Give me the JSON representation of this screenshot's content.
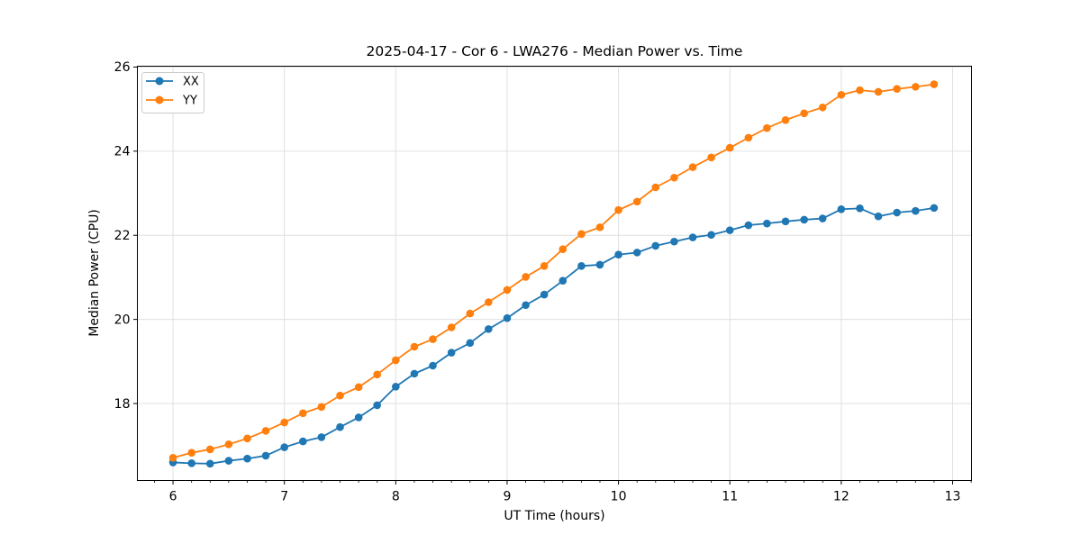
{
  "figure": {
    "background": "#ffffff",
    "text_color": "#000000",
    "grid_color": "#e0e0e0",
    "spine_color": "#000000"
  },
  "chart_data": {
    "type": "line",
    "title": "2025-04-17 - Cor 6 - LWA276 - Median Power vs. Time",
    "xlabel": "UT Time (hours)",
    "ylabel": "Median Power (CPU)",
    "xlim": [
      5.68,
      13.17
    ],
    "ylim": [
      16.17,
      26.02
    ],
    "x_ticks": [
      6,
      7,
      8,
      9,
      10,
      11,
      12,
      13
    ],
    "y_ticks": [
      18,
      20,
      22,
      24,
      26
    ],
    "x_minor_step": 0.1667,
    "grid": true,
    "legend_position": "upper-left",
    "x": [
      6.0,
      6.167,
      6.333,
      6.5,
      6.667,
      6.833,
      7.0,
      7.167,
      7.333,
      7.5,
      7.667,
      7.833,
      8.0,
      8.167,
      8.333,
      8.5,
      8.667,
      8.833,
      9.0,
      9.167,
      9.333,
      9.5,
      9.667,
      9.833,
      10.0,
      10.167,
      10.333,
      10.5,
      10.667,
      10.833,
      11.0,
      11.167,
      11.333,
      11.5,
      11.667,
      11.833,
      12.0,
      12.167,
      12.333,
      12.5,
      12.667,
      12.833
    ],
    "series": [
      {
        "name": "XX",
        "color": "#1f77b4",
        "values": [
          16.6,
          16.58,
          16.57,
          16.64,
          16.69,
          16.76,
          16.96,
          17.1,
          17.2,
          17.44,
          17.67,
          17.96,
          18.4,
          18.71,
          18.9,
          19.21,
          19.44,
          19.77,
          20.03,
          20.34,
          20.59,
          20.92,
          21.27,
          21.3,
          21.54,
          21.59,
          21.75,
          21.85,
          21.95,
          22.01,
          22.12,
          22.24,
          22.28,
          22.33,
          22.37,
          22.4,
          22.62,
          22.64,
          22.45,
          22.54,
          22.58,
          22.65
        ]
      },
      {
        "name": "YY",
        "color": "#ff7f0e",
        "values": [
          16.71,
          16.83,
          16.91,
          17.03,
          17.17,
          17.35,
          17.55,
          17.77,
          17.92,
          18.19,
          18.39,
          18.69,
          19.03,
          19.35,
          19.53,
          19.81,
          20.14,
          20.41,
          20.7,
          21.01,
          21.27,
          21.67,
          22.03,
          22.19,
          22.6,
          22.8,
          23.14,
          23.37,
          23.62,
          23.85,
          24.08,
          24.32,
          24.55,
          24.74,
          24.9,
          25.04,
          25.34,
          25.45,
          25.41,
          25.48,
          25.53,
          25.59
        ]
      }
    ]
  },
  "legend": {
    "items": [
      {
        "label": "XX",
        "color": "#1f77b4"
      },
      {
        "label": "YY",
        "color": "#ff7f0e"
      }
    ]
  }
}
